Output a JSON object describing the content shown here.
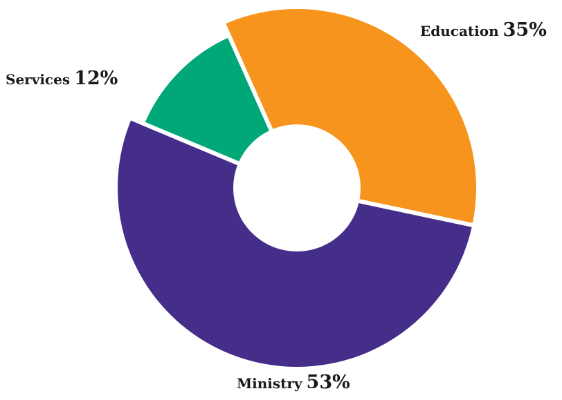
{
  "chart_data": {
    "type": "pie",
    "style": "donut",
    "title": "",
    "legend": "none",
    "slices": [
      {
        "label": "Education",
        "value": 35,
        "value_text": "35%",
        "color": "#F7941D"
      },
      {
        "label": "Ministry",
        "value": 53,
        "value_text": "53%",
        "color": "#452D8A"
      },
      {
        "label": "Services",
        "value": 12,
        "value_text": "12%",
        "color": "#00A878"
      }
    ]
  }
}
